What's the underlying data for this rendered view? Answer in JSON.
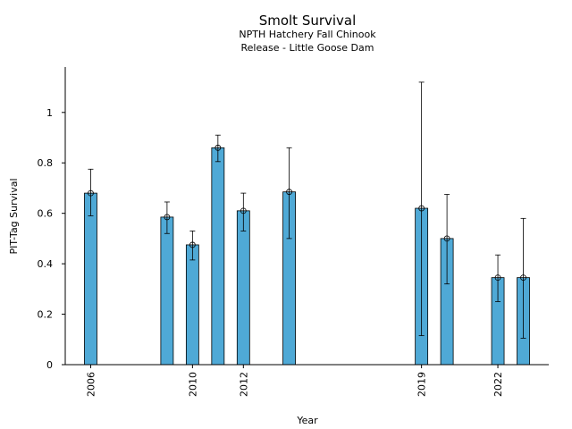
{
  "chart_data": {
    "type": "bar",
    "title": "Smolt Survival",
    "subtitle_lines": [
      "NPTH Hatchery Fall Chinook",
      "Release - Little Goose Dam"
    ],
    "xlabel": "Year",
    "ylabel": "PIT-Tag Survival",
    "ylim": [
      0,
      1.18
    ],
    "xlim": [
      2005.0,
      2024.0
    ],
    "yticks": [
      0,
      0.2,
      0.4,
      0.6,
      0.8,
      1
    ],
    "ytick_labels": [
      "0",
      "0.2",
      "0.4",
      "0.6",
      "0.8",
      "1"
    ],
    "xticks": [
      2006,
      2010,
      2012,
      2019,
      2022
    ],
    "xtick_labels": [
      "2006",
      "2010",
      "2012",
      "2019",
      "2022"
    ],
    "bar_color": "#4fa9d6",
    "series": [
      {
        "name": "PIT-Tag Survival",
        "x": [
          2006,
          2009,
          2010,
          2011,
          2012,
          2013.8,
          2019,
          2020,
          2022,
          2023
        ],
        "values": [
          0.68,
          0.585,
          0.475,
          0.86,
          0.61,
          0.685,
          0.62,
          0.5,
          0.345,
          0.345
        ],
        "err_low": [
          0.59,
          0.52,
          0.415,
          0.805,
          0.53,
          0.5,
          0.115,
          0.32,
          0.25,
          0.105
        ],
        "err_high": [
          0.775,
          0.645,
          0.53,
          0.91,
          0.68,
          0.86,
          1.12,
          0.675,
          0.435,
          0.58
        ]
      }
    ]
  }
}
